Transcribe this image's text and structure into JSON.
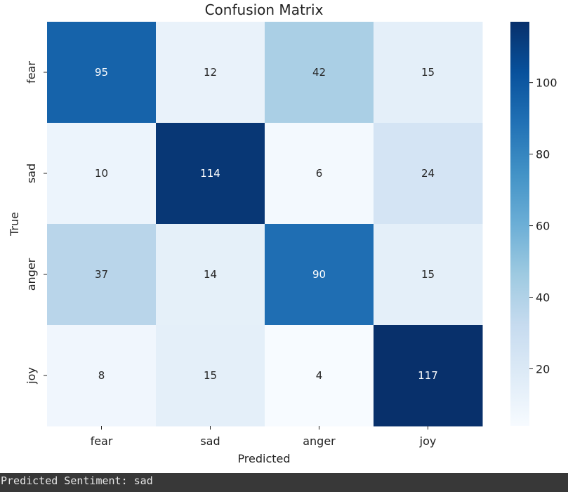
{
  "chart_data": {
    "type": "heatmap",
    "title": "Confusion Matrix",
    "xlabel": "Predicted",
    "ylabel": "True",
    "x_categories": [
      "fear",
      "sad",
      "anger",
      "joy"
    ],
    "y_categories": [
      "fear",
      "sad",
      "anger",
      "joy"
    ],
    "values": [
      [
        95,
        12,
        42,
        15
      ],
      [
        10,
        114,
        6,
        24
      ],
      [
        37,
        14,
        90,
        15
      ],
      [
        8,
        15,
        4,
        117
      ]
    ],
    "colormap": "Blues",
    "vmin": 4,
    "vmax": 117,
    "colorbar_ticks": [
      20,
      40,
      60,
      80,
      100
    ],
    "colorbar_tick_labels": [
      "20",
      "40",
      "60",
      "80",
      "100"
    ]
  },
  "output": {
    "text": "Predicted Sentiment: sad"
  }
}
